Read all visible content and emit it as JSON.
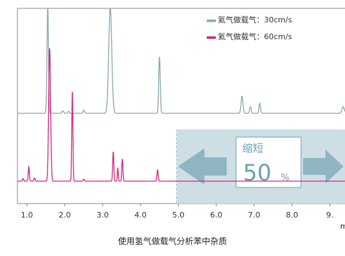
{
  "caption": "使用氢气做载气分析苯中杂质",
  "colors": {
    "series_30": "#8aa6b0",
    "series_60": "#d4267f",
    "panel": "#cddfe5",
    "arrow": "#8fb5c3",
    "badge_text": "#6ba0b3",
    "axis": "#888888"
  },
  "annotation": {
    "label": "缩短",
    "value": "50",
    "unit": "%"
  },
  "chart_data": {
    "type": "line",
    "xlim": [
      0.75,
      9.4
    ],
    "x_ticks": [
      "1.0",
      "2.0",
      "3.0",
      "4.0",
      "5.0",
      "6.0",
      "7.0",
      "8.0",
      "9."
    ],
    "x_tick_values": [
      1.0,
      2.0,
      3.0,
      4.0,
      5.0,
      6.0,
      7.0,
      8.0,
      9.0
    ],
    "xlabel": "m",
    "grid": false,
    "legend_position": "top-right",
    "series": [
      {
        "name": "氦气做载气：30cm/s",
        "baseline": 0.0,
        "peaks": [
          {
            "x": 1.55,
            "h": 1.6,
            "w": 0.02
          },
          {
            "x": 1.95,
            "h": 0.04,
            "w": 0.02
          },
          {
            "x": 2.1,
            "h": 0.03,
            "w": 0.02
          },
          {
            "x": 2.5,
            "h": 0.05,
            "w": 0.02
          },
          {
            "x": 3.2,
            "h": 1.6,
            "w": 0.04
          },
          {
            "x": 4.5,
            "h": 0.85,
            "w": 0.02
          },
          {
            "x": 6.68,
            "h": 0.26,
            "w": 0.025
          },
          {
            "x": 6.9,
            "h": 0.1,
            "w": 0.02
          },
          {
            "x": 7.15,
            "h": 0.15,
            "w": 0.02
          },
          {
            "x": 9.35,
            "h": 0.1,
            "w": 0.03
          }
        ]
      },
      {
        "name": "氦气做载气：60cm/s",
        "baseline": 0.0,
        "peaks": [
          {
            "x": 0.9,
            "h": 0.04,
            "w": 0.015
          },
          {
            "x": 1.05,
            "h": 0.22,
            "w": 0.015
          },
          {
            "x": 1.2,
            "h": 0.05,
            "w": 0.015
          },
          {
            "x": 1.6,
            "h": 2.0,
            "w": 0.025
          },
          {
            "x": 2.2,
            "h": 1.35,
            "w": 0.015
          },
          {
            "x": 2.5,
            "h": 0.03,
            "w": 0.015
          },
          {
            "x": 3.28,
            "h": 0.44,
            "w": 0.015
          },
          {
            "x": 3.4,
            "h": 0.2,
            "w": 0.012
          },
          {
            "x": 3.52,
            "h": 0.33,
            "w": 0.015
          },
          {
            "x": 4.45,
            "h": 0.17,
            "w": 0.015
          }
        ]
      }
    ]
  }
}
